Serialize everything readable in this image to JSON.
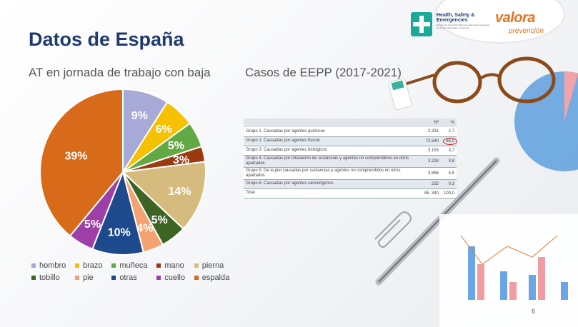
{
  "title": "Datos de España",
  "left_subtitle": "AT en jornada de trabajo con baja",
  "right_subtitle": "Casos de EEPP (2017-2021)",
  "logos": {
    "hse_title": "Health, Safety & Emergencies",
    "hse_sub": "Servicio de Prevención Mancomunado de las empresas del Grupo Volkswagen en España",
    "valora": "valora",
    "prevencion": "prevención"
  },
  "chart_data": {
    "type": "pie",
    "labels": [
      "hombro",
      "brazo",
      "muñeca",
      "mano",
      "pierna",
      "tobillo",
      "pie",
      "otras",
      "cuello",
      "espalda"
    ],
    "values": [
      9,
      6,
      5,
      3,
      14,
      5,
      4,
      10,
      5,
      39
    ],
    "data_labels": [
      "9%",
      "6%",
      "5%",
      "3%",
      "14%",
      "5%",
      "4%",
      "10%",
      "5%",
      "39%"
    ],
    "colors": [
      "#a7a9d6",
      "#f5c100",
      "#62a843",
      "#9b3a0f",
      "#d6bb7e",
      "#3e6423",
      "#f2a371",
      "#1d4a8c",
      "#9e3fa8",
      "#d86b1a"
    ],
    "legend_position": "bottom"
  },
  "table": {
    "headers": [
      "",
      "Nº",
      "%"
    ],
    "rows": [
      {
        "label": "Grupo 1. Causadas por agentes químicos",
        "n": "2.331",
        "pct": "2,7"
      },
      {
        "label": "Grupo 2. Causadas por agentes físicos",
        "n": "72.540",
        "pct": "85,0"
      },
      {
        "label": "Grupo 3. Causadas por agentes biológicos",
        "n": "3.153",
        "pct": "3,7"
      },
      {
        "label": "Grupo 4. Causadas por inhalación de sustancias y agentes no comprendidos en otros apartados",
        "n": "3.228",
        "pct": "3,8"
      },
      {
        "label": "Grupo 5. De la piel causadas por sustancias y agentes no comprendidos en otros apartados",
        "n": "3.856",
        "pct": "4,5"
      },
      {
        "label": "Grupo 6. Causadas por agentes carcinógenos",
        "n": "232",
        "pct": "0,3"
      },
      {
        "label": "Total",
        "n": "85. 340",
        "pct": "100,0"
      }
    ]
  },
  "page_number": "6"
}
